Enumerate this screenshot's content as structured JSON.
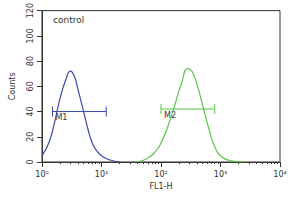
{
  "chart_data": {
    "type": "line",
    "annotations": [
      "control"
    ],
    "xlabel": "FL1-H",
    "ylabel": "Counts",
    "log": "x",
    "grid": false,
    "xlim": [
      1,
      10000
    ],
    "xticks": [
      {
        "value": 1,
        "label": "10⁰"
      },
      {
        "value": 10,
        "label": "10¹"
      },
      {
        "value": 100,
        "label": "10²"
      },
      {
        "value": 1000,
        "label": "10³"
      },
      {
        "value": 10000,
        "label": "10⁴"
      }
    ],
    "ylim": [
      0,
      120
    ],
    "yticks": [
      0,
      20,
      40,
      60,
      80,
      100,
      120
    ],
    "series": [
      {
        "color": "#3a4aa8",
        "x": [
          1,
          1.3,
          1.6,
          2,
          2.5,
          3,
          3.5,
          4,
          5,
          6,
          7,
          8,
          10,
          13,
          20
        ],
        "values": [
          5,
          15,
          30,
          50,
          65,
          72,
          68,
          58,
          40,
          25,
          15,
          10,
          5,
          2,
          0
        ]
      },
      {
        "color": "#5cc84a",
        "x": [
          40,
          60,
          80,
          100,
          130,
          170,
          220,
          280,
          330,
          400,
          500,
          650,
          800,
          1000,
          1500,
          2500
        ],
        "values": [
          0,
          3,
          8,
          15,
          28,
          45,
          62,
          74,
          72,
          62,
          45,
          25,
          12,
          5,
          1,
          0
        ]
      }
    ],
    "markers": [
      {
        "label": "M1",
        "x": [
          1.5,
          12
        ],
        "y": 40,
        "color": "#3a4aa8"
      },
      {
        "label": "M2",
        "x": [
          100,
          800
        ],
        "y": 42,
        "color": "#5cc84a"
      }
    ]
  }
}
